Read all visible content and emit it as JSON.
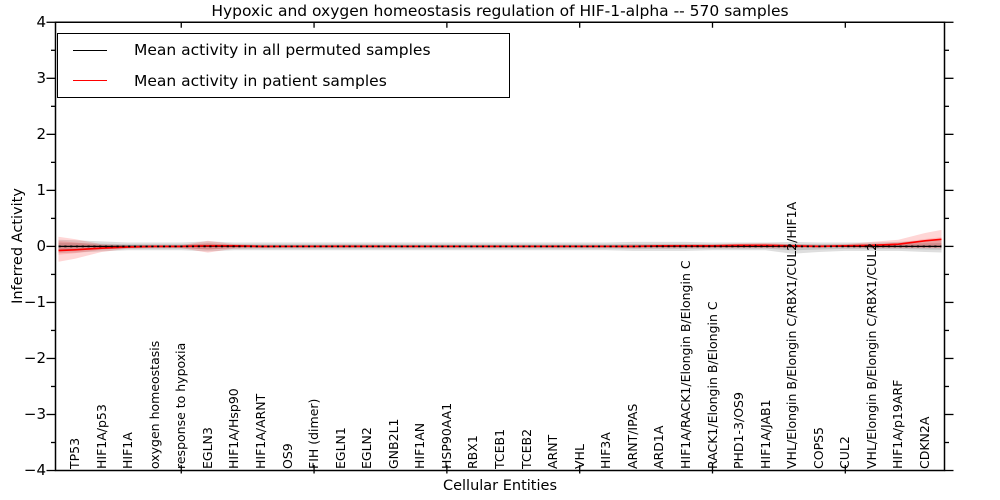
{
  "title": "Hypoxic and oxygen homeostasis regulation of HIF-1-alpha -- 570 samples",
  "legend": {
    "items": [
      {
        "label": "Mean activity in all permuted samples",
        "color": "#000000"
      },
      {
        "label": "Mean activity in patient samples",
        "color": "#ff0000"
      }
    ]
  },
  "axes": {
    "xlabel": "Cellular Entities",
    "ylabel": "Inferred Activity",
    "ytick_labels": [
      "4",
      "3",
      "2",
      "1",
      "0",
      "−1",
      "−2",
      "−3",
      "−4"
    ],
    "ytick_values": [
      4,
      3,
      2,
      1,
      0,
      -1,
      -2,
      -3,
      -4
    ]
  },
  "chart_data": {
    "type": "line",
    "title": "Hypoxic and oxygen homeostasis regulation of HIF-1-alpha -- 570 samples",
    "xlabel": "Cellular Entities",
    "ylabel": "Inferred Activity",
    "ylim": [
      -4,
      4
    ],
    "grid": false,
    "legend_position": "upper left",
    "x_major_ticks": [
      5,
      10,
      15,
      20,
      25,
      30
    ],
    "y_minor_step": 0.5,
    "categories": [
      "TP53",
      "HIF1A/p53",
      "HIF1A",
      "oxygen homeostasis",
      "response to hypoxia",
      "EGLN3",
      "HIF1A/Hsp90",
      "HIF1A/ARNT",
      "OS9",
      "FIH (dimer)",
      "EGLN1",
      "EGLN2",
      "GNB2L1",
      "HIF1AN",
      "HSP90AA1",
      "RBX1",
      "TCEB1",
      "TCEB2",
      "ARNT",
      "VHL",
      "HIF3A",
      "ARNT/IPAS",
      "ARD1A",
      "HIF1A/RACK1/Elongin B/Elongin C",
      "RACK1/Elongin B/Elongin C",
      "PHD1-3/OS9",
      "HIF1A/JAB1",
      "VHL/Elongin B/Elongin C/RBX1/CUL2/HIF1A",
      "COPS5",
      "CUL2",
      "VHL/Elongin B/Elongin C/RBX1/CUL2",
      "HIF1A/p19ARF",
      "CDKN2A"
    ],
    "series": [
      {
        "name": "Mean activity in all permuted samples",
        "color": "#000000",
        "values": [
          0,
          0,
          0,
          0,
          0,
          0,
          0,
          0,
          0,
          0,
          0,
          0,
          0,
          0,
          0,
          0,
          0,
          0,
          0,
          0,
          0,
          0,
          0,
          0,
          0,
          0,
          0,
          0,
          0,
          0,
          0,
          0,
          0
        ]
      },
      {
        "name": "Mean activity in patient samples",
        "color": "#ff0000",
        "values": [
          -0.06,
          -0.03,
          -0.01,
          0,
          0,
          0.01,
          0.01,
          0,
          0,
          0,
          0,
          0,
          0,
          0,
          0,
          0,
          0,
          0,
          0,
          0,
          0,
          0,
          0.01,
          0.01,
          0.01,
          0.02,
          0.02,
          0.01,
          0,
          0.01,
          0.02,
          0.04,
          0.1
        ]
      }
    ],
    "bands": [
      {
        "name": "permuted-samples-range",
        "color": "#000000",
        "alpha": 0.13,
        "upper": [
          0.11,
          0.09,
          0.07,
          0.07,
          0.07,
          0.09,
          0.07,
          0.07,
          0.07,
          0.07,
          0.07,
          0.07,
          0.07,
          0.07,
          0.07,
          0.07,
          0.07,
          0.07,
          0.07,
          0.07,
          0.07,
          0.08,
          0.08,
          0.08,
          0.07,
          0.07,
          0.07,
          0.08,
          0.07,
          0.07,
          0.07,
          0.08,
          0.1
        ],
        "lower": [
          -0.11,
          -0.09,
          -0.07,
          -0.07,
          -0.07,
          -0.09,
          -0.07,
          -0.07,
          -0.07,
          -0.07,
          -0.07,
          -0.07,
          -0.07,
          -0.07,
          -0.07,
          -0.07,
          -0.07,
          -0.07,
          -0.07,
          -0.07,
          -0.07,
          -0.08,
          -0.08,
          -0.08,
          -0.07,
          -0.07,
          -0.07,
          -0.13,
          -0.1,
          -0.08,
          -0.08,
          -0.08,
          -0.1
        ]
      },
      {
        "name": "patient-samples-range",
        "color": "#ff0000",
        "alpha": 0.16,
        "upper": [
          0.13,
          0.04,
          0.02,
          0.02,
          0.02,
          0.1,
          0.04,
          0.02,
          0.02,
          0.02,
          0.03,
          0.03,
          0.02,
          0.02,
          0.02,
          0.02,
          0.02,
          0.02,
          0.02,
          0.02,
          0.02,
          0.03,
          0.03,
          0.04,
          0.04,
          0.05,
          0.06,
          0.04,
          0.03,
          0.04,
          0.08,
          0.12,
          0.24
        ],
        "lower": [
          -0.22,
          -0.1,
          -0.04,
          -0.03,
          -0.03,
          -0.11,
          -0.04,
          -0.03,
          -0.02,
          -0.02,
          -0.02,
          -0.02,
          -0.02,
          -0.02,
          -0.02,
          -0.02,
          -0.02,
          -0.02,
          -0.02,
          -0.02,
          -0.02,
          -0.03,
          -0.03,
          -0.03,
          -0.03,
          -0.03,
          -0.03,
          -0.03,
          -0.02,
          -0.02,
          -0.03,
          -0.03,
          -0.03
        ]
      }
    ]
  }
}
